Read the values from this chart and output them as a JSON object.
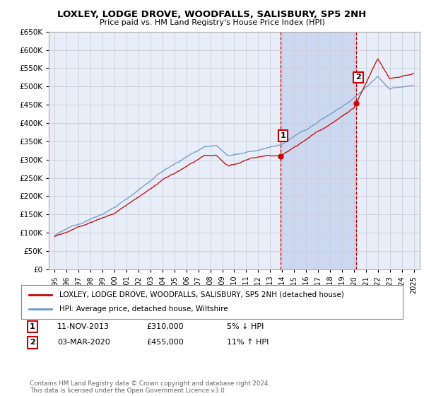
{
  "title": "LOXLEY, LODGE DROVE, WOODFALLS, SALISBURY, SP5 2NH",
  "subtitle": "Price paid vs. HM Land Registry's House Price Index (HPI)",
  "ylim": [
    0,
    650000
  ],
  "ytick_vals": [
    0,
    50000,
    100000,
    150000,
    200000,
    250000,
    300000,
    350000,
    400000,
    450000,
    500000,
    550000,
    600000,
    650000
  ],
  "xlim_start": 1994.5,
  "xlim_end": 2025.5,
  "sale1_x": 2013.86,
  "sale1_y": 310000,
  "sale2_x": 2020.17,
  "sale2_y": 455000,
  "legend_line1": "LOXLEY, LODGE DROVE, WOODFALLS, SALISBURY, SP5 2NH (detached house)",
  "legend_line2": "HPI: Average price, detached house, Wiltshire",
  "footer": "Contains HM Land Registry data © Crown copyright and database right 2024.\nThis data is licensed under the Open Government Licence v3.0.",
  "line_color_red": "#cc0000",
  "line_color_blue": "#6699cc",
  "grid_color": "#ccccdd",
  "bg_color": "#e8eef8",
  "vline_color": "#cc0000",
  "shade_color": "#ccd8f0"
}
